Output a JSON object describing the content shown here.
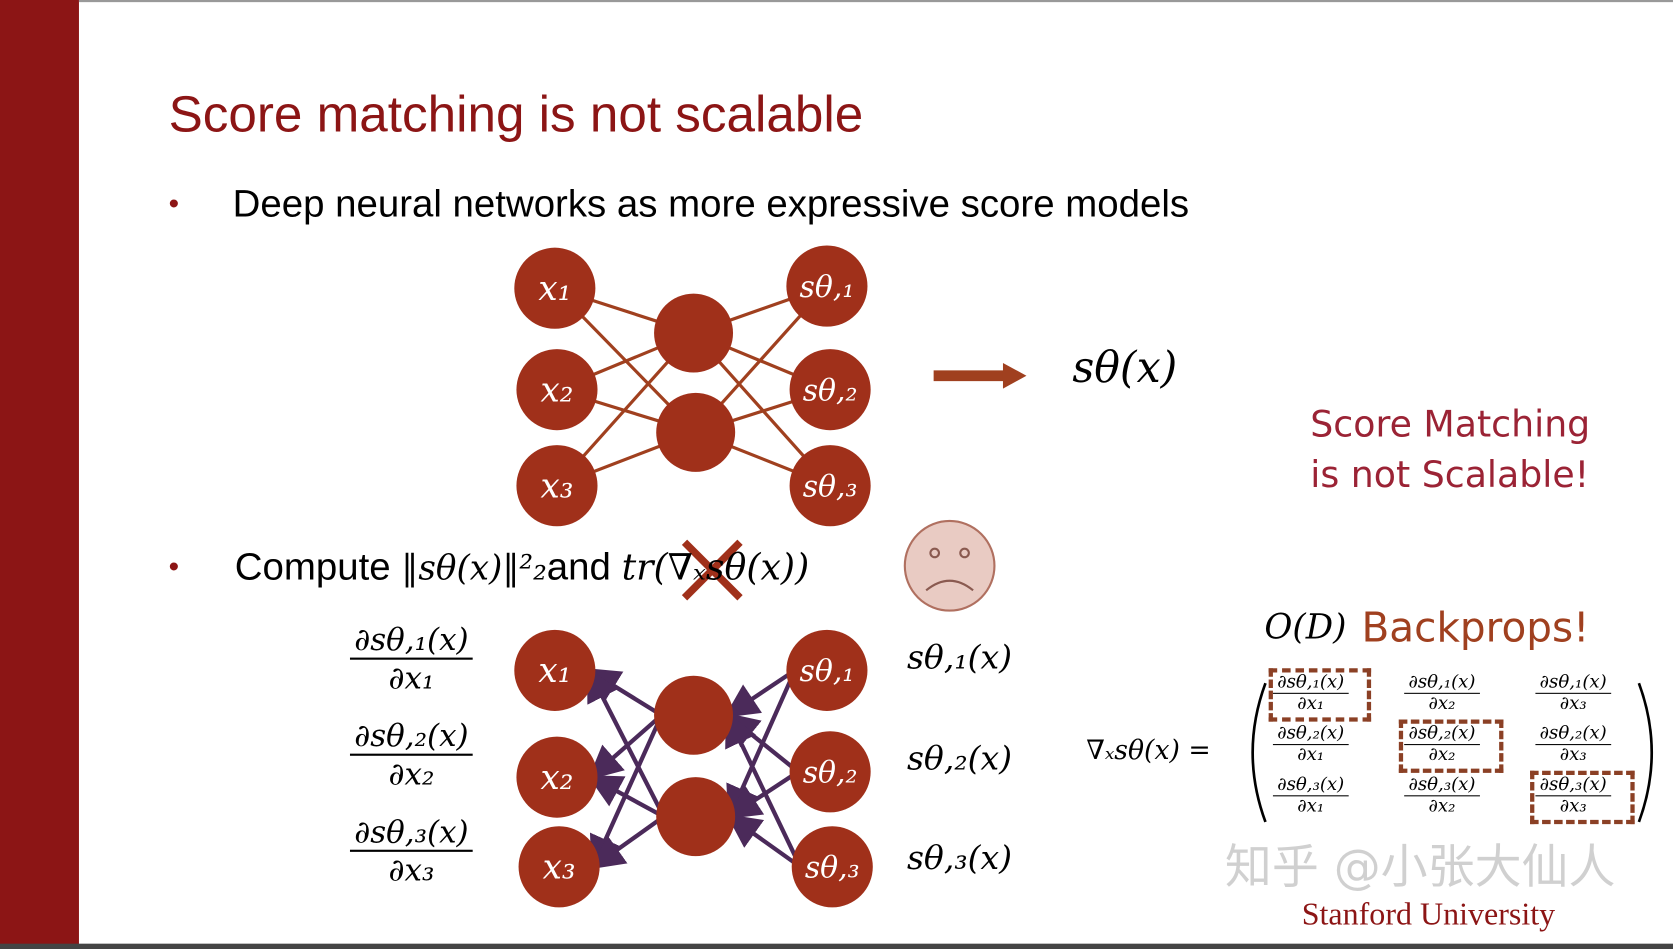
{
  "slide": {
    "title": "Score matching is not scalable",
    "bullet_marker": "•",
    "bullet1": "Deep neural networks as more expressive score models",
    "bullet2_prefix": "Compute",
    "bullet2_norm": "‖sθ(x)‖²₂",
    "bullet2_and": "and",
    "bullet2_trace": "tr(∇ₓsθ(x))",
    "output_label": "sθ(x)",
    "callout_line1": "Score Matching",
    "callout_line2": "is not Scalable!",
    "complexity": "O(D)",
    "backprops": "Backprops!",
    "jacobian_lhs": "∇ₓsθ(x) =",
    "footer": "Stanford University",
    "watermark": "知乎 @小张大仙人"
  },
  "network": {
    "inputs": [
      "x₁",
      "x₂",
      "x₃"
    ],
    "outputs": [
      "sθ,₁",
      "sθ,₂",
      "sθ,₃"
    ],
    "node_color": "#a0301a",
    "edge_color": "#a0401f",
    "backprop_color": "#4b2a5a"
  },
  "bottom": {
    "left_fracs": [
      {
        "num": "∂sθ,₁(x)",
        "den": "∂x₁"
      },
      {
        "num": "∂sθ,₂(x)",
        "den": "∂x₂"
      },
      {
        "num": "∂sθ,₃(x)",
        "den": "∂x₃"
      }
    ],
    "right_labels": [
      "sθ,₁(x)",
      "sθ,₂(x)",
      "sθ,₃(x)"
    ],
    "matrix": [
      [
        {
          "num": "∂sθ,₁(x)",
          "den": "∂x₁"
        },
        {
          "num": "∂sθ,₁(x)",
          "den": "∂x₂"
        },
        {
          "num": "∂sθ,₁(x)",
          "den": "∂x₃"
        }
      ],
      [
        {
          "num": "∂sθ,₂(x)",
          "den": "∂x₁"
        },
        {
          "num": "∂sθ,₂(x)",
          "den": "∂x₂"
        },
        {
          "num": "∂sθ,₂(x)",
          "den": "∂x₃"
        }
      ],
      [
        {
          "num": "∂sθ,₃(x)",
          "den": "∂x₁"
        },
        {
          "num": "∂sθ,₃(x)",
          "den": "∂x₂"
        },
        {
          "num": "∂sθ,₃(x)",
          "den": "∂x₃"
        }
      ]
    ]
  },
  "colors": {
    "brand": "#8c1515",
    "callout": "#9b2335",
    "dashed_box": "#8b4025"
  }
}
